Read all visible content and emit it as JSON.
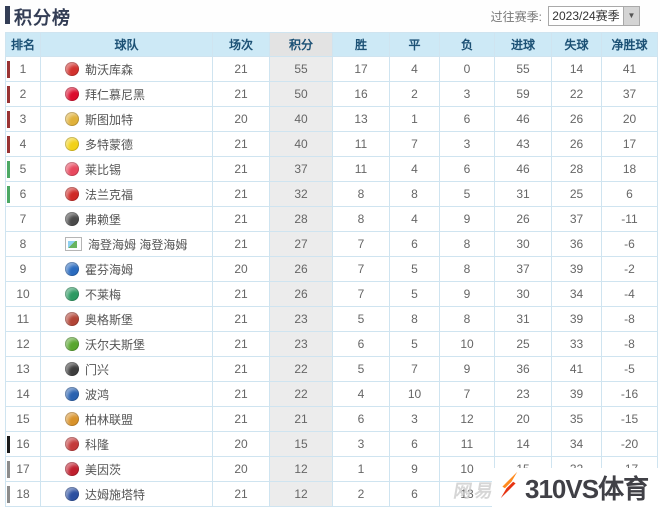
{
  "header": {
    "title": "积分榜",
    "season_label": "过往赛季:",
    "season_value": "2023/24赛季"
  },
  "table": {
    "columns": [
      {
        "key": "rank",
        "label": "排名"
      },
      {
        "key": "team",
        "label": "球队"
      },
      {
        "key": "played",
        "label": "场次"
      },
      {
        "key": "points",
        "label": "积分"
      },
      {
        "key": "win",
        "label": "胜"
      },
      {
        "key": "draw",
        "label": "平"
      },
      {
        "key": "loss",
        "label": "负"
      },
      {
        "key": "gf",
        "label": "进球"
      },
      {
        "key": "ga",
        "label": "失球"
      },
      {
        "key": "gd",
        "label": "净胜球"
      }
    ],
    "rows": [
      {
        "rank": "1",
        "name": "勒沃库森",
        "logo": "#d2322e",
        "marker": "#993333",
        "stats": [
          "21",
          "55",
          "17",
          "4",
          "0",
          "55",
          "14",
          "41"
        ]
      },
      {
        "rank": "2",
        "name": "拜仁慕尼黑",
        "logo": "#dc0c2d",
        "marker": "#993333",
        "stats": [
          "21",
          "50",
          "16",
          "2",
          "3",
          "59",
          "22",
          "37"
        ]
      },
      {
        "rank": "3",
        "name": "斯图加特",
        "logo": "#e0b13a",
        "marker": "#993333",
        "stats": [
          "20",
          "40",
          "13",
          "1",
          "6",
          "46",
          "26",
          "20"
        ]
      },
      {
        "rank": "4",
        "name": "多特蒙德",
        "logo": "#f2d117",
        "marker": "#993333",
        "stats": [
          "21",
          "40",
          "11",
          "7",
          "3",
          "43",
          "26",
          "17"
        ]
      },
      {
        "rank": "5",
        "name": "莱比锡",
        "logo": "#e8485e",
        "marker": "#4ca864",
        "stats": [
          "21",
          "37",
          "11",
          "4",
          "6",
          "46",
          "28",
          "18"
        ]
      },
      {
        "rank": "6",
        "name": "法兰克福",
        "logo": "#cf2a26",
        "marker": "#4ca864",
        "stats": [
          "21",
          "32",
          "8",
          "8",
          "5",
          "31",
          "25",
          "6"
        ]
      },
      {
        "rank": "7",
        "name": "弗赖堡",
        "logo": "#4a4a4a",
        "marker": "",
        "stats": [
          "21",
          "28",
          "8",
          "4",
          "9",
          "26",
          "37",
          "-11"
        ]
      },
      {
        "rank": "8",
        "name": "海登海姆 海登海姆",
        "logo": "broken",
        "marker": "",
        "stats": [
          "21",
          "27",
          "7",
          "6",
          "8",
          "30",
          "36",
          "-6"
        ]
      },
      {
        "rank": "9",
        "name": "霍芬海姆",
        "logo": "#2a6bbf",
        "marker": "",
        "stats": [
          "20",
          "26",
          "7",
          "5",
          "8",
          "37",
          "39",
          "-2"
        ]
      },
      {
        "rank": "10",
        "name": "不莱梅",
        "logo": "#2c9a62",
        "marker": "",
        "stats": [
          "21",
          "26",
          "7",
          "5",
          "9",
          "30",
          "34",
          "-4"
        ]
      },
      {
        "rank": "11",
        "name": "奥格斯堡",
        "logo": "#b24436",
        "marker": "",
        "stats": [
          "21",
          "23",
          "5",
          "8",
          "8",
          "31",
          "39",
          "-8"
        ]
      },
      {
        "rank": "12",
        "name": "沃尔夫斯堡",
        "logo": "#58a62e",
        "marker": "",
        "stats": [
          "21",
          "23",
          "6",
          "5",
          "10",
          "25",
          "33",
          "-8"
        ]
      },
      {
        "rank": "13",
        "name": "门兴",
        "logo": "#3d3d3d",
        "marker": "",
        "stats": [
          "21",
          "22",
          "5",
          "7",
          "9",
          "36",
          "41",
          "-5"
        ]
      },
      {
        "rank": "14",
        "name": "波鸿",
        "logo": "#2a62b0",
        "marker": "",
        "stats": [
          "21",
          "22",
          "4",
          "10",
          "7",
          "23",
          "39",
          "-16"
        ]
      },
      {
        "rank": "15",
        "name": "柏林联盟",
        "logo": "#d8922a",
        "marker": "",
        "stats": [
          "21",
          "21",
          "6",
          "3",
          "12",
          "20",
          "35",
          "-15"
        ]
      },
      {
        "rank": "16",
        "name": "科隆",
        "logo": "#c43b3b",
        "marker": "#1a1a1a",
        "stats": [
          "20",
          "15",
          "3",
          "6",
          "11",
          "14",
          "34",
          "-20"
        ]
      },
      {
        "rank": "17",
        "name": "美因茨",
        "logo": "#c01f2e",
        "marker": "#8c8c8c",
        "stats": [
          "20",
          "12",
          "1",
          "9",
          "10",
          "15",
          "32",
          "-17"
        ]
      },
      {
        "rank": "18",
        "name": "达姆施塔特",
        "logo": "#2b4fa0",
        "marker": "#8c8c8c",
        "stats": [
          "21",
          "12",
          "2",
          "6",
          "13",
          "",
          "",
          ""
        ]
      }
    ]
  },
  "watermarks": {
    "netease": "网易",
    "brand_text": "310VS体育"
  },
  "icons": {
    "select_arrow": "▼"
  },
  "colors": {
    "accent_champions": "#993333",
    "accent_europe": "#4ca864",
    "accent_playoff": "#1a1a1a",
    "accent_relegation": "#8c8c8c",
    "brand_orange": "#ff8a1e",
    "brand_red": "#e63312"
  }
}
